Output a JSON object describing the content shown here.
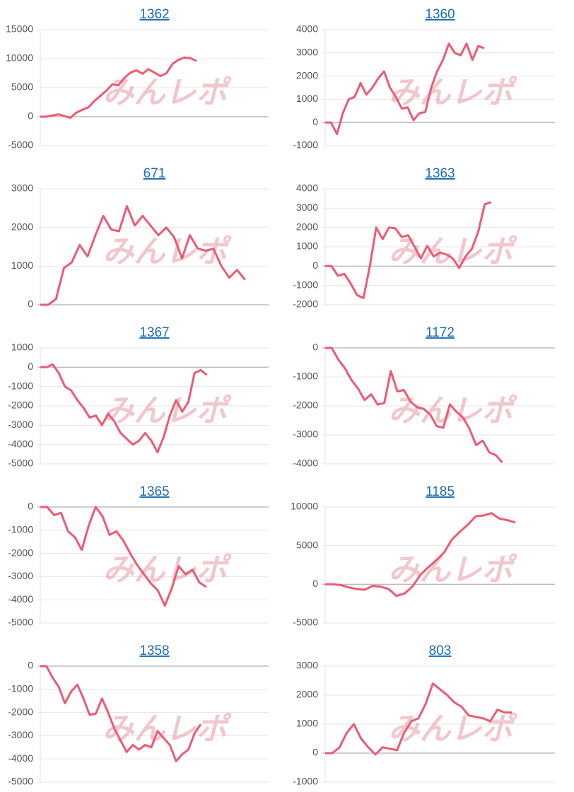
{
  "watermark": "みんレポ",
  "chart_data": [
    {
      "type": "line",
      "title": "1362",
      "color": "#ee5a72",
      "ylim": [
        -5000,
        15000
      ],
      "yticks": [
        -5000,
        0,
        5000,
        10000,
        15000
      ],
      "grid": true,
      "values": [
        0,
        0,
        200,
        400,
        100,
        -200,
        700,
        1200,
        1600,
        2700,
        3600,
        4500,
        5600,
        5400,
        6700,
        7600,
        8000,
        7400,
        8200,
        7600,
        7000,
        7500,
        9100,
        9800,
        10200,
        10100,
        9600,
        null,
        null,
        null,
        null,
        null,
        null,
        null,
        null,
        null,
        null,
        null,
        null
      ]
    },
    {
      "type": "line",
      "title": "1360",
      "color": "#ee5a72",
      "ylim": [
        -1000,
        4000
      ],
      "yticks": [
        -1000,
        0,
        1000,
        2000,
        3000,
        4000
      ],
      "grid": true,
      "values": [
        0,
        0,
        -500,
        400,
        1000,
        1100,
        1700,
        1200,
        1500,
        1900,
        2200,
        1500,
        1100,
        600,
        650,
        100,
        400,
        450,
        1500,
        2200,
        2700,
        3400,
        3000,
        2900,
        3400,
        2700,
        3300,
        3200,
        null,
        null,
        null,
        null,
        null,
        null,
        null,
        null,
        null,
        null,
        null,
        null
      ]
    },
    {
      "type": "line",
      "title": "671",
      "color": "#ee5a72",
      "ylim": [
        0,
        3000
      ],
      "yticks": [
        0,
        1000,
        2000,
        3000
      ],
      "grid": true,
      "values": [
        0,
        0,
        150,
        950,
        1100,
        1550,
        1250,
        1800,
        2300,
        1950,
        1900,
        2550,
        2050,
        2300,
        2050,
        1800,
        2000,
        1750,
        1200,
        1800,
        1450,
        1400,
        1450,
        1000,
        700,
        900,
        650,
        null,
        null,
        null
      ]
    },
    {
      "type": "line",
      "title": "1363",
      "color": "#ee5a72",
      "ylim": [
        -2000,
        4000
      ],
      "yticks": [
        -2000,
        -1000,
        0,
        1000,
        2000,
        3000,
        4000
      ],
      "grid": true,
      "values": [
        0,
        0,
        -500,
        -400,
        -900,
        -1500,
        -1650,
        0,
        2000,
        1400,
        2000,
        1950,
        1500,
        1600,
        1000,
        400,
        1050,
        500,
        700,
        600,
        400,
        -100,
        500,
        900,
        1800,
        3200,
        3300,
        null,
        null,
        null,
        null,
        null,
        null,
        null,
        null,
        null,
        null
      ]
    },
    {
      "type": "line",
      "title": "1367",
      "color": "#ee5a72",
      "ylim": [
        -5000,
        1000
      ],
      "yticks": [
        -5000,
        -4000,
        -3000,
        -2000,
        -1000,
        0,
        1000
      ],
      "grid": true,
      "values": [
        0,
        0,
        150,
        -300,
        -1000,
        -1200,
        -1700,
        -2100,
        -2600,
        -2500,
        -3000,
        -2400,
        -2800,
        -3400,
        -3700,
        -4000,
        -3800,
        -3400,
        -3800,
        -4400,
        -3600,
        -2500,
        -1700,
        -2300,
        -1800,
        -300,
        -150,
        -400,
        null,
        null,
        null,
        null,
        null,
        null,
        null,
        null,
        null,
        null
      ]
    },
    {
      "type": "line",
      "title": "1172",
      "color": "#ee5a72",
      "ylim": [
        -4000,
        0
      ],
      "yticks": [
        -4000,
        -3000,
        -2000,
        -1000,
        0
      ],
      "grid": true,
      "values": [
        0,
        0,
        -400,
        -700,
        -1100,
        -1400,
        -1800,
        -1600,
        -1950,
        -1900,
        -800,
        -1500,
        -1450,
        -1850,
        -2050,
        -2100,
        -2300,
        -2700,
        -2750,
        -1950,
        -2200,
        -2400,
        -2800,
        -3350,
        -3200,
        -3600,
        -3700,
        -3950,
        null,
        null,
        null,
        null,
        null,
        null,
        null,
        null
      ]
    },
    {
      "type": "line",
      "title": "1365",
      "color": "#ee5a72",
      "ylim": [
        -5000,
        0
      ],
      "yticks": [
        -5000,
        -4000,
        -3000,
        -2000,
        -1000,
        0
      ],
      "grid": true,
      "values": [
        0,
        0,
        -350,
        -250,
        -1050,
        -1300,
        -1850,
        -800,
        0,
        -400,
        -1200,
        -1050,
        -1450,
        -2000,
        -2500,
        -2900,
        -3300,
        -3600,
        -4250,
        -3500,
        -2550,
        -2900,
        -2700,
        -3250,
        -3450,
        null,
        null,
        null,
        null,
        null,
        null,
        null,
        null,
        null
      ]
    },
    {
      "type": "line",
      "title": "1185",
      "color": "#ee5a72",
      "ylim": [
        -5000,
        10000
      ],
      "yticks": [
        -5000,
        0,
        5000,
        10000
      ],
      "grid": true,
      "values": [
        0,
        0,
        -100,
        -400,
        -600,
        -700,
        -200,
        -300,
        -600,
        -1500,
        -1200,
        -300,
        1200,
        2200,
        3100,
        4100,
        5800,
        6800,
        7700,
        8800,
        8900,
        9200,
        8500,
        8300,
        8000,
        null,
        null,
        null,
        null,
        null
      ]
    },
    {
      "type": "line",
      "title": "1358",
      "color": "#ee5a72",
      "ylim": [
        -5000,
        0
      ],
      "yticks": [
        -5000,
        -4000,
        -3000,
        -2000,
        -1000,
        0
      ],
      "grid": true,
      "values": [
        0,
        0,
        -500,
        -900,
        -1600,
        -1100,
        -800,
        -1400,
        -2100,
        -2050,
        -1400,
        -2000,
        -2700,
        -3200,
        -3700,
        -3400,
        -3600,
        -3400,
        -3500,
        -2800,
        -3100,
        -3400,
        -4100,
        -3800,
        -3600,
        -2900,
        -2500,
        null,
        null,
        null,
        null,
        null,
        null,
        null,
        null,
        null,
        null,
        null
      ]
    },
    {
      "type": "line",
      "title": "803",
      "color": "#ee5a72",
      "ylim": [
        -1000,
        3000
      ],
      "yticks": [
        -1000,
        0,
        1000,
        2000,
        3000
      ],
      "grid": true,
      "values": [
        0,
        0,
        200,
        700,
        1000,
        500,
        200,
        -50,
        200,
        150,
        100,
        700,
        1100,
        1200,
        1700,
        2400,
        2200,
        2000,
        1750,
        1600,
        1300,
        1250,
        1200,
        1100,
        1500,
        1400,
        1400,
        null,
        null,
        null,
        null,
        null,
        null
      ]
    }
  ]
}
